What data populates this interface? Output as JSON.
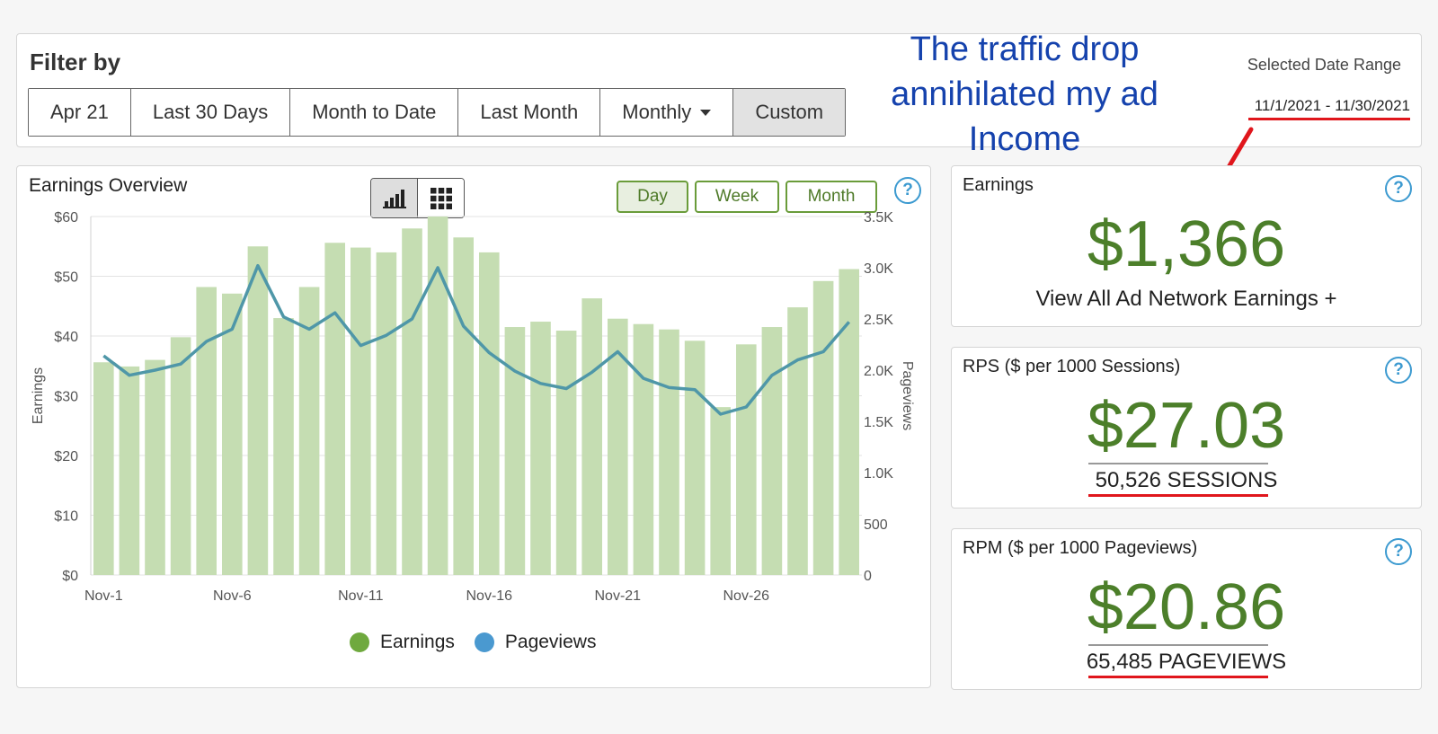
{
  "filter": {
    "title": "Filter by",
    "buttons": [
      "Apr 21",
      "Last 30 Days",
      "Month to Date",
      "Last Month",
      "Monthly",
      "Custom"
    ],
    "active": "Custom",
    "date_range_label": "Selected Date Range",
    "date_range_value": "11/1/2021 - 11/30/2021"
  },
  "annotation": {
    "text": "The traffic drop annihilated my ad Income",
    "color": "#1542ad",
    "arrow_color": "#e0161c"
  },
  "chart": {
    "title": "Earnings Overview",
    "period_buttons": [
      "Day",
      "Week",
      "Month"
    ],
    "active_period": "Day",
    "view_toggle": [
      "bar-chart-icon",
      "grid-icon"
    ],
    "help": "?"
  },
  "chart_data": {
    "type": "bar",
    "categories": [
      "Nov-1",
      "Nov-2",
      "Nov-3",
      "Nov-4",
      "Nov-5",
      "Nov-6",
      "Nov-7",
      "Nov-8",
      "Nov-9",
      "Nov-10",
      "Nov-11",
      "Nov-12",
      "Nov-13",
      "Nov-14",
      "Nov-15",
      "Nov-16",
      "Nov-17",
      "Nov-18",
      "Nov-19",
      "Nov-20",
      "Nov-21",
      "Nov-22",
      "Nov-23",
      "Nov-24",
      "Nov-25",
      "Nov-26",
      "Nov-27",
      "Nov-28",
      "Nov-29",
      "Nov-30"
    ],
    "x_tick_labels": [
      "Nov-1",
      "Nov-6",
      "Nov-11",
      "Nov-16",
      "Nov-21",
      "Nov-26"
    ],
    "x_tick_indices": [
      0,
      5,
      10,
      15,
      20,
      25
    ],
    "series": [
      {
        "name": "Earnings",
        "type": "bar",
        "axis": "left",
        "color": "#c5ddb2",
        "values": [
          35.6,
          34.9,
          36.0,
          39.8,
          48.2,
          47.1,
          55.0,
          43.0,
          48.2,
          55.6,
          54.8,
          54.0,
          58.0,
          60.5,
          56.5,
          54.0,
          41.5,
          42.4,
          40.9,
          46.3,
          42.9,
          42.0,
          41.1,
          39.2,
          28.1,
          38.6,
          41.5,
          44.8,
          49.2,
          51.2
        ]
      },
      {
        "name": "Pageviews",
        "type": "line",
        "axis": "right",
        "color": "#4f97a8",
        "values": [
          2140,
          1950,
          2000,
          2060,
          2280,
          2400,
          3020,
          2520,
          2400,
          2560,
          2240,
          2340,
          2500,
          3000,
          2430,
          2170,
          1990,
          1870,
          1820,
          1980,
          2180,
          1920,
          1830,
          1810,
          1570,
          1640,
          1950,
          2100,
          2180,
          2470
        ]
      }
    ],
    "y_left": {
      "label": "Earnings",
      "ticks": [
        "$0",
        "$10",
        "$20",
        "$30",
        "$40",
        "$50",
        "$60"
      ],
      "range": [
        0,
        60
      ]
    },
    "y_right": {
      "label": "Pageviews",
      "ticks": [
        "0",
        "500",
        "1.0K",
        "1.5K",
        "2.0K",
        "2.5K",
        "3.0K",
        "3.5K"
      ],
      "range": [
        0,
        3500
      ]
    },
    "legend": [
      {
        "name": "Earnings",
        "color": "#6fa93e"
      },
      {
        "name": "Pageviews",
        "color": "#4a99d0"
      }
    ],
    "legend_position": "bottom",
    "grid": true
  },
  "stats": {
    "earnings": {
      "title": "Earnings",
      "value": "$1,366",
      "link": "View All Ad Network Earnings +"
    },
    "rps": {
      "title": "RPS ($ per 1000 Sessions)",
      "value": "$27.03",
      "sub": "50,526 SESSIONS"
    },
    "rpm": {
      "title": "RPM ($ per 1000 Pageviews)",
      "value": "$20.86",
      "sub": "65,485 PAGEVIEWS"
    },
    "value_color": "#4c7f2a",
    "underline_color": "#e0161c"
  }
}
